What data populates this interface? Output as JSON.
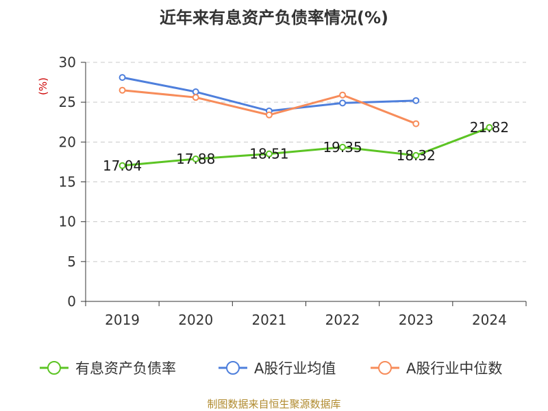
{
  "chart_data": {
    "type": "line",
    "title": "近年来有息资产负债率情况(%)",
    "ylabel": "(%)",
    "categories": [
      "2019",
      "2020",
      "2021",
      "2022",
      "2023",
      "2024"
    ],
    "ylim": [
      0,
      30
    ],
    "yticks": [
      "0",
      "5",
      "10",
      "15",
      "20",
      "25",
      "30"
    ],
    "grid": true,
    "legend_position": "bottom",
    "series": [
      {
        "name": "有息资产负债率",
        "color": "#5cc424",
        "values": [
          17.04,
          17.88,
          18.51,
          19.35,
          18.32,
          21.82
        ],
        "labels": [
          "17.04",
          "17.88",
          "18.51",
          "19.35",
          "18.32",
          "21.82"
        ]
      },
      {
        "name": "A股行业均值",
        "color": "#4e7fdc",
        "values": [
          28.1,
          26.3,
          23.9,
          24.9,
          25.2,
          null
        ]
      },
      {
        "name": "A股行业中位数",
        "color": "#f78c5a",
        "values": [
          26.5,
          25.6,
          23.4,
          25.9,
          22.3,
          null
        ]
      }
    ],
    "source": "制图数据来自恒生聚源数据库"
  }
}
